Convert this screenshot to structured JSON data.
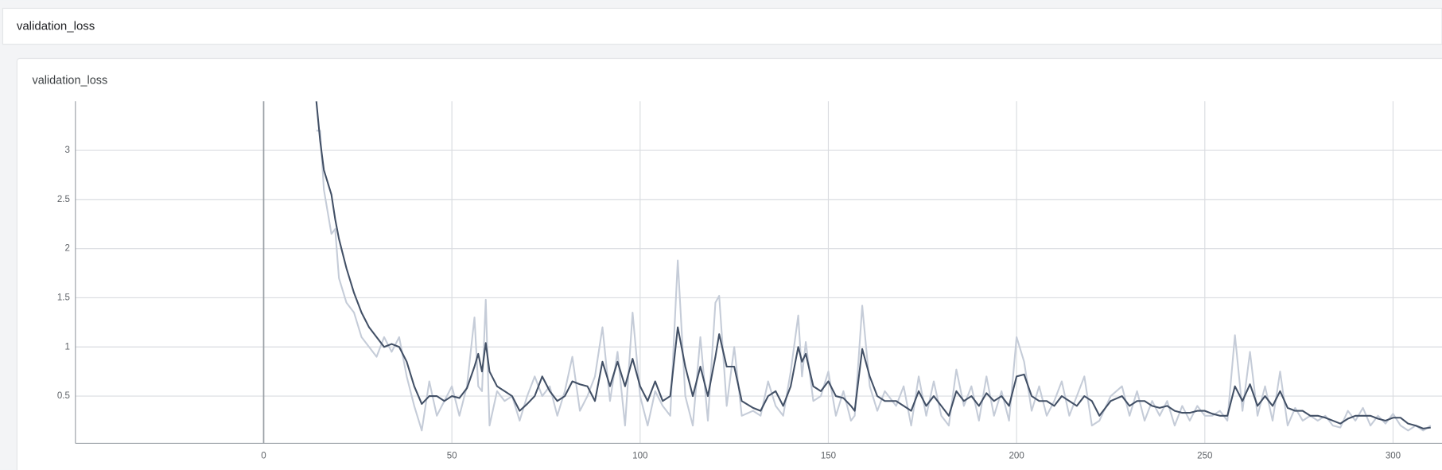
{
  "header": {
    "title": "validation_loss"
  },
  "chart_data": {
    "type": "line",
    "title": "validation_loss",
    "x": [
      14,
      15,
      16,
      18,
      19,
      20,
      22,
      24,
      26,
      28,
      30,
      32,
      34,
      36,
      38,
      40,
      42,
      44,
      46,
      48,
      50,
      52,
      54,
      56,
      57,
      58,
      59,
      60,
      62,
      64,
      66,
      68,
      70,
      72,
      74,
      76,
      78,
      80,
      82,
      84,
      86,
      88,
      90,
      92,
      94,
      96,
      98,
      100,
      102,
      104,
      106,
      108,
      110,
      112,
      114,
      116,
      118,
      120,
      121,
      123,
      125,
      127,
      130,
      132,
      134,
      136,
      138,
      140,
      142,
      143,
      144,
      146,
      148,
      150,
      152,
      154,
      156,
      157,
      159,
      161,
      163,
      165,
      168,
      170,
      172,
      174,
      176,
      178,
      180,
      182,
      184,
      186,
      188,
      190,
      192,
      194,
      196,
      198,
      200,
      202,
      204,
      206,
      208,
      210,
      212,
      214,
      216,
      218,
      220,
      222,
      225,
      228,
      230,
      232,
      234,
      236,
      238,
      240,
      242,
      244,
      246,
      248,
      250,
      252,
      254,
      256,
      258,
      260,
      262,
      264,
      266,
      268,
      270,
      272,
      274,
      276,
      278,
      280,
      282,
      284,
      286,
      288,
      290,
      292,
      294,
      296,
      298,
      300,
      302,
      304,
      306,
      308,
      310
    ],
    "series": [
      {
        "color": "#c5ccd8",
        "values": [
          3.2,
          3.2,
          2.6,
          2.15,
          2.2,
          1.7,
          1.45,
          1.35,
          1.1,
          1.0,
          0.9,
          1.1,
          0.95,
          1.1,
          0.7,
          0.4,
          0.15,
          0.65,
          0.3,
          0.45,
          0.6,
          0.3,
          0.6,
          1.3,
          0.6,
          0.55,
          1.48,
          0.2,
          0.55,
          0.45,
          0.5,
          0.25,
          0.5,
          0.7,
          0.5,
          0.6,
          0.3,
          0.55,
          0.9,
          0.35,
          0.5,
          0.7,
          1.2,
          0.45,
          0.95,
          0.2,
          1.35,
          0.5,
          0.2,
          0.55,
          0.4,
          0.3,
          1.88,
          0.5,
          0.2,
          1.1,
          0.25,
          1.45,
          1.52,
          0.4,
          1.0,
          0.3,
          0.35,
          0.3,
          0.65,
          0.4,
          0.3,
          0.75,
          1.32,
          0.7,
          1.05,
          0.45,
          0.5,
          0.75,
          0.3,
          0.55,
          0.25,
          0.3,
          1.42,
          0.6,
          0.35,
          0.55,
          0.4,
          0.6,
          0.2,
          0.7,
          0.3,
          0.65,
          0.3,
          0.2,
          0.77,
          0.4,
          0.6,
          0.25,
          0.7,
          0.3,
          0.55,
          0.25,
          1.1,
          0.85,
          0.35,
          0.6,
          0.3,
          0.45,
          0.65,
          0.3,
          0.5,
          0.7,
          0.2,
          0.25,
          0.5,
          0.6,
          0.3,
          0.55,
          0.25,
          0.45,
          0.3,
          0.45,
          0.2,
          0.4,
          0.25,
          0.4,
          0.3,
          0.3,
          0.35,
          0.25,
          1.12,
          0.35,
          0.95,
          0.3,
          0.6,
          0.25,
          0.75,
          0.2,
          0.38,
          0.25,
          0.3,
          0.25,
          0.3,
          0.2,
          0.18,
          0.35,
          0.25,
          0.38,
          0.2,
          0.3,
          0.22,
          0.32,
          0.2,
          0.15,
          0.2,
          0.15,
          0.2
        ]
      },
      {
        "color": "#425066",
        "values": [
          3.5,
          3.1,
          2.8,
          2.55,
          2.3,
          2.1,
          1.8,
          1.55,
          1.35,
          1.2,
          1.1,
          1.0,
          1.03,
          1.0,
          0.85,
          0.6,
          0.42,
          0.5,
          0.5,
          0.45,
          0.5,
          0.48,
          0.58,
          0.8,
          0.93,
          0.75,
          1.04,
          0.75,
          0.6,
          0.55,
          0.5,
          0.35,
          0.42,
          0.5,
          0.7,
          0.55,
          0.45,
          0.5,
          0.65,
          0.62,
          0.6,
          0.45,
          0.85,
          0.6,
          0.85,
          0.6,
          0.88,
          0.6,
          0.45,
          0.65,
          0.45,
          0.5,
          1.2,
          0.8,
          0.5,
          0.8,
          0.5,
          0.9,
          1.13,
          0.8,
          0.8,
          0.45,
          0.38,
          0.35,
          0.5,
          0.55,
          0.4,
          0.6,
          1.0,
          0.85,
          0.93,
          0.6,
          0.55,
          0.65,
          0.5,
          0.48,
          0.4,
          0.35,
          0.98,
          0.7,
          0.5,
          0.45,
          0.45,
          0.4,
          0.35,
          0.55,
          0.4,
          0.5,
          0.4,
          0.3,
          0.55,
          0.45,
          0.5,
          0.4,
          0.53,
          0.45,
          0.5,
          0.4,
          0.7,
          0.72,
          0.5,
          0.45,
          0.45,
          0.4,
          0.5,
          0.45,
          0.4,
          0.5,
          0.45,
          0.3,
          0.45,
          0.5,
          0.4,
          0.45,
          0.45,
          0.4,
          0.38,
          0.4,
          0.35,
          0.33,
          0.33,
          0.35,
          0.35,
          0.32,
          0.3,
          0.3,
          0.6,
          0.45,
          0.62,
          0.4,
          0.5,
          0.4,
          0.55,
          0.38,
          0.35,
          0.35,
          0.3,
          0.3,
          0.28,
          0.25,
          0.22,
          0.27,
          0.3,
          0.3,
          0.3,
          0.27,
          0.25,
          0.28,
          0.28,
          0.22,
          0.2,
          0.17,
          0.18
        ]
      }
    ],
    "xlim": [
      -50,
      313
    ],
    "ylim": [
      0.02,
      3.5
    ],
    "xticks": [
      0,
      50,
      100,
      150,
      200,
      250,
      300
    ],
    "yticks": [
      0.5,
      1,
      1.5,
      2,
      2.5,
      3
    ],
    "grid": true
  }
}
